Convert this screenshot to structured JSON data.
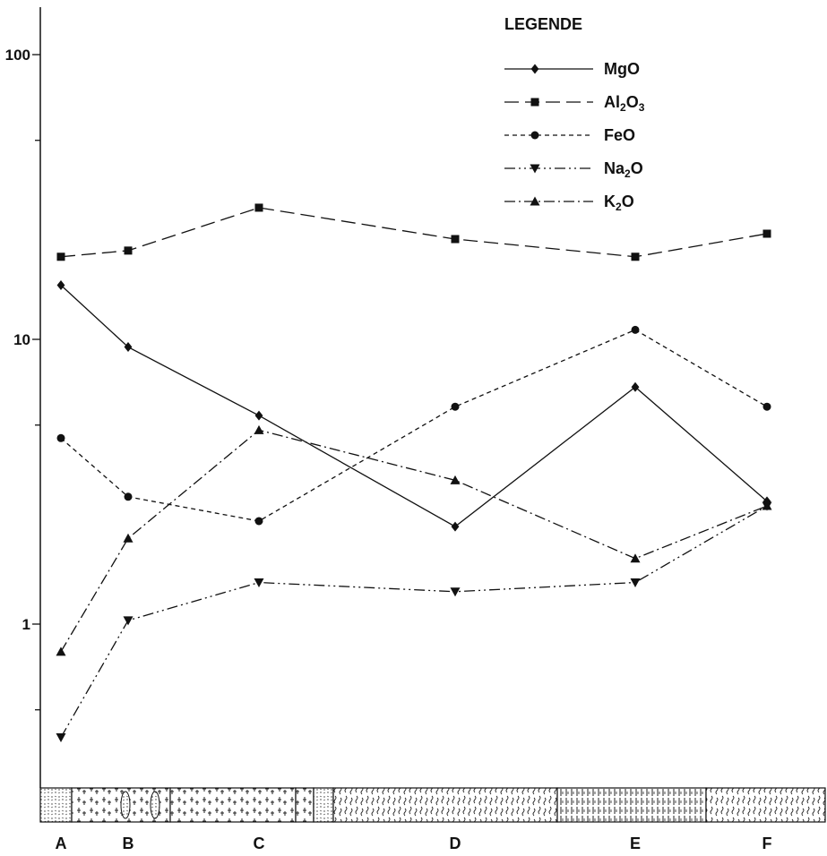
{
  "chart_data": {
    "type": "line",
    "title": "",
    "xlabel": "",
    "ylabel": "",
    "y_scale": "log",
    "ylim": [
      0.3,
      150
    ],
    "y_ticks": [
      {
        "value": 1,
        "label": "1"
      },
      {
        "value": 10,
        "label": "10"
      },
      {
        "value": 100,
        "label": "100"
      }
    ],
    "categories": [
      "A",
      "B",
      "C",
      "D",
      "E",
      "F"
    ],
    "grid": false,
    "legend": {
      "title": "LEGENDE",
      "placement": "top-right"
    },
    "series": [
      {
        "name": "MgO",
        "name_parts": [
          {
            "t": "MgO",
            "sub": false
          }
        ],
        "marker": "diamond",
        "dash": "solid",
        "values": [
          15.5,
          9.4,
          5.4,
          2.2,
          6.8,
          2.7
        ]
      },
      {
        "name": "Al2O3",
        "name_parts": [
          {
            "t": "Al",
            "sub": false
          },
          {
            "t": "2",
            "sub": true
          },
          {
            "t": "O",
            "sub": false
          },
          {
            "t": "3",
            "sub": true
          }
        ],
        "marker": "square",
        "dash": "long-dash",
        "values": [
          19.5,
          20.5,
          29,
          22.5,
          19.5,
          23.5
        ]
      },
      {
        "name": "FeO",
        "name_parts": [
          {
            "t": "FeO",
            "sub": false
          }
        ],
        "marker": "circle",
        "dash": "short-dash",
        "values": [
          4.5,
          2.8,
          2.3,
          5.8,
          10.8,
          5.8
        ]
      },
      {
        "name": "Na2O",
        "name_parts": [
          {
            "t": "Na",
            "sub": false
          },
          {
            "t": "2",
            "sub": true
          },
          {
            "t": "O",
            "sub": false
          }
        ],
        "marker": "triangle-down",
        "dash": "dash-dot-dot",
        "values": [
          0.4,
          1.03,
          1.4,
          1.3,
          1.4,
          2.6
        ]
      },
      {
        "name": "K2O",
        "name_parts": [
          {
            "t": "K",
            "sub": false
          },
          {
            "t": "2",
            "sub": true
          },
          {
            "t": "O",
            "sub": false
          }
        ],
        "marker": "triangle-up",
        "dash": "dash-dot",
        "values": [
          0.8,
          2.0,
          4.8,
          3.2,
          1.7,
          2.6
        ]
      }
    ],
    "colors": {
      "line": "#111111",
      "axis": "#111111",
      "background": "#ffffff"
    }
  }
}
